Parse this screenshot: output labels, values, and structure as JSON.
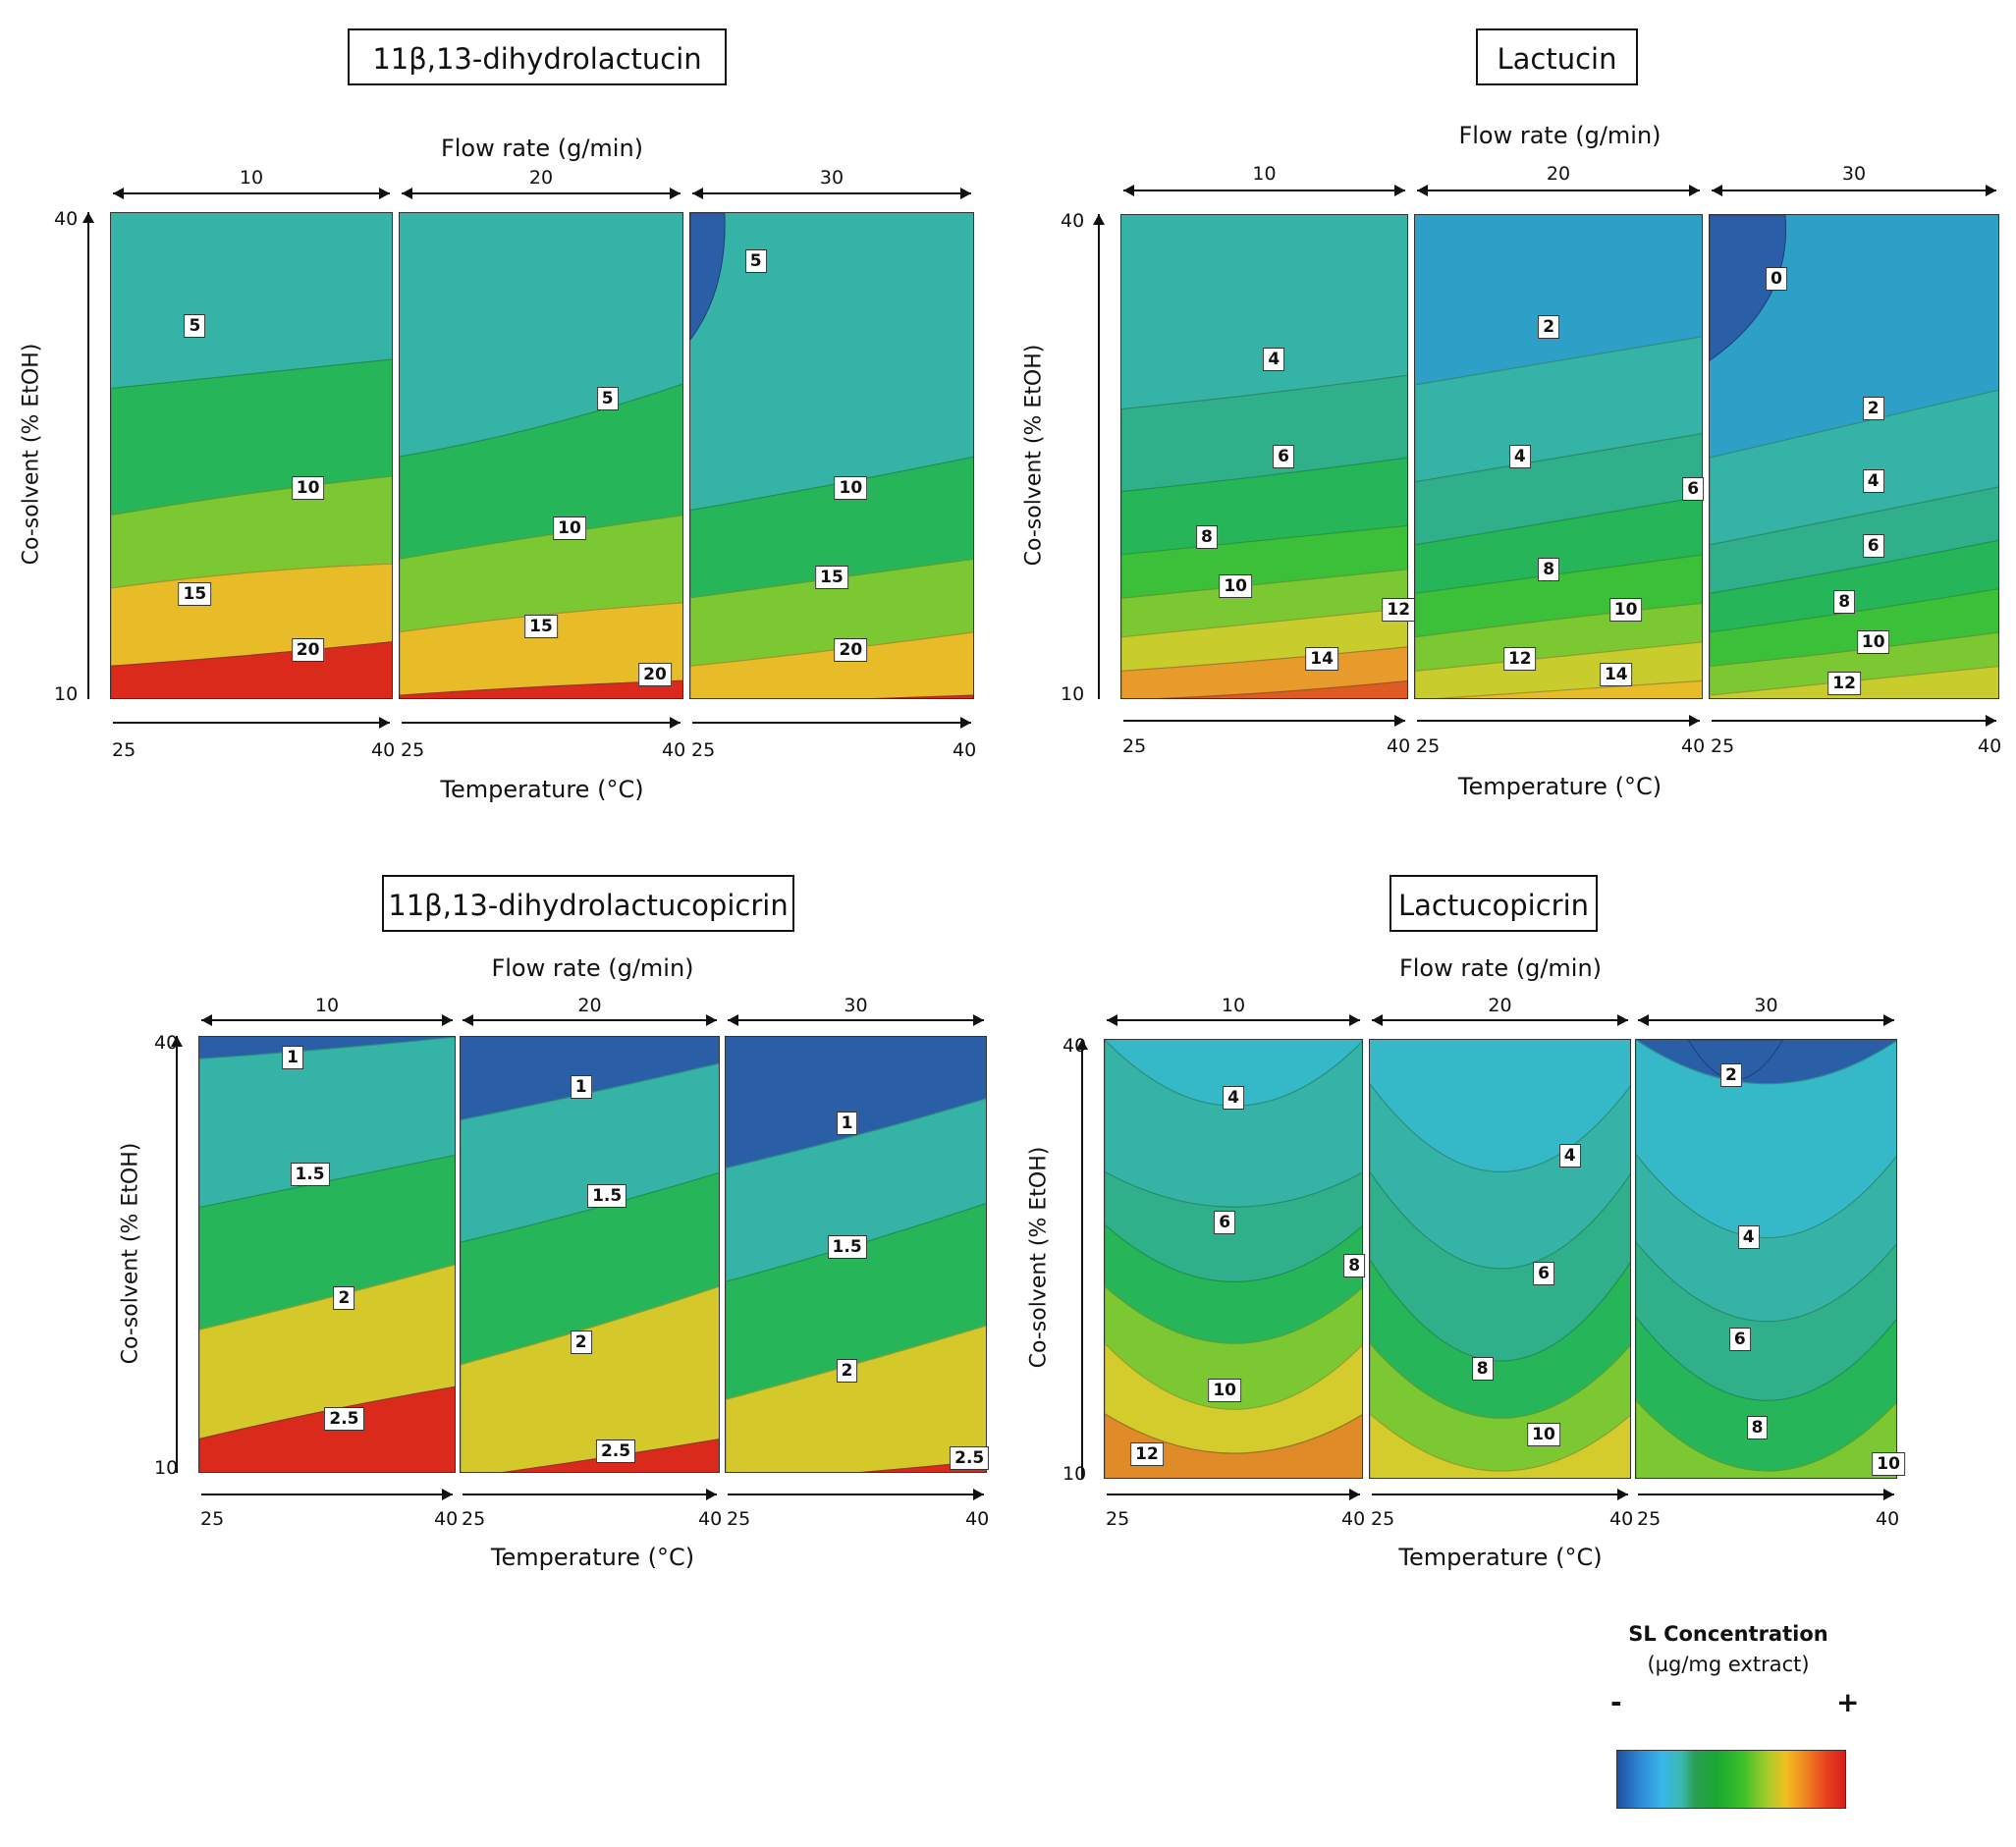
{
  "figure": {
    "common": {
      "flow_title": "Flow rate (g/min)",
      "temp_title": "Temperature (°C)",
      "y_title": "Co-solvent (% EtOH)",
      "flow_rates": [
        "10",
        "20",
        "30"
      ],
      "temp_min": "25",
      "temp_max": "40",
      "y_min": "10",
      "y_max": "40"
    },
    "legend": {
      "title": "SL Concentration",
      "subtitle": "(µg/mg extract)",
      "minus": "-",
      "plus": "+"
    }
  },
  "chart_data": [
    {
      "type": "heatmap",
      "title": "11β,13-dihydrolactucin",
      "xlabel": "Temperature (°C)",
      "ylabel": "Co-solvent (% EtOH)",
      "facet_label": "Flow rate (g/min)",
      "x_range": [
        25,
        40
      ],
      "y_range": [
        10,
        40
      ],
      "facets": [
        {
          "flow": "10",
          "contour_labels": [
            {
              "text": "5",
              "temp": 29.5,
              "etoh": 33
            },
            {
              "text": "10",
              "temp": 35.5,
              "etoh": 23
            },
            {
              "text": "15",
              "temp": 29.5,
              "etoh": 16.5
            },
            {
              "text": "20",
              "temp": 35.5,
              "etoh": 13
            }
          ]
        },
        {
          "flow": "20",
          "contour_labels": [
            {
              "text": "5",
              "temp": 36,
              "etoh": 28.5
            },
            {
              "text": "10",
              "temp": 34,
              "etoh": 20.5
            },
            {
              "text": "15",
              "temp": 32.5,
              "etoh": 14.5
            },
            {
              "text": "20",
              "temp": 38.5,
              "etoh": 11.5
            }
          ]
        },
        {
          "flow": "30",
          "contour_labels": [
            {
              "text": "5",
              "temp": 28.5,
              "etoh": 37
            },
            {
              "text": "10",
              "temp": 33.5,
              "etoh": 23
            },
            {
              "text": "15",
              "temp": 32.5,
              "etoh": 17.5
            },
            {
              "text": "20",
              "temp": 33.5,
              "etoh": 13
            }
          ]
        }
      ]
    },
    {
      "type": "heatmap",
      "title": "Lactucin",
      "xlabel": "Temperature (°C)",
      "ylabel": "Co-solvent (% EtOH)",
      "facet_label": "Flow rate (g/min)",
      "x_range": [
        25,
        40
      ],
      "y_range": [
        10,
        40
      ],
      "facets": [
        {
          "flow": "10",
          "contour_labels": [
            {
              "text": "4",
              "temp": 33,
              "etoh": 31
            },
            {
              "text": "6",
              "temp": 33.5,
              "etoh": 25
            },
            {
              "text": "8",
              "temp": 29.5,
              "etoh": 20
            },
            {
              "text": "10",
              "temp": 31,
              "etoh": 17
            },
            {
              "text": "12",
              "temp": 39.5,
              "etoh": 15.5
            },
            {
              "text": "14",
              "temp": 35.5,
              "etoh": 12.5
            }
          ]
        },
        {
          "flow": "20",
          "contour_labels": [
            {
              "text": "2",
              "temp": 32,
              "etoh": 33
            },
            {
              "text": "4",
              "temp": 30.5,
              "etoh": 25
            },
            {
              "text": "6",
              "temp": 39.5,
              "etoh": 23
            },
            {
              "text": "8",
              "temp": 32,
              "etoh": 18
            },
            {
              "text": "10",
              "temp": 36,
              "etoh": 15.5
            },
            {
              "text": "12",
              "temp": 30.5,
              "etoh": 12.5
            },
            {
              "text": "14",
              "temp": 35.5,
              "etoh": 11.5
            }
          ]
        },
        {
          "flow": "30",
          "contour_labels": [
            {
              "text": "0",
              "temp": 28.5,
              "etoh": 36
            },
            {
              "text": "2",
              "temp": 33.5,
              "etoh": 28
            },
            {
              "text": "4",
              "temp": 33.5,
              "etoh": 23.5
            },
            {
              "text": "6",
              "temp": 33.5,
              "etoh": 19.5
            },
            {
              "text": "8",
              "temp": 32,
              "etoh": 16
            },
            {
              "text": "10",
              "temp": 33.5,
              "etoh": 13.5
            },
            {
              "text": "12",
              "temp": 32,
              "etoh": 11
            }
          ]
        }
      ]
    },
    {
      "type": "heatmap",
      "title": "11β,13-dihydrolactucopicrin",
      "xlabel": "Temperature (°C)",
      "ylabel": "Co-solvent (% EtOH)",
      "facet_label": "Flow rate (g/min)",
      "x_range": [
        25,
        40
      ],
      "y_range": [
        10,
        40
      ],
      "facets": [
        {
          "flow": "10",
          "contour_labels": [
            {
              "text": "1",
              "temp": 30.5,
              "etoh": 38.5
            },
            {
              "text": "1.5",
              "temp": 31.5,
              "etoh": 30.5
            },
            {
              "text": "2",
              "temp": 33.5,
              "etoh": 22
            },
            {
              "text": "2.5",
              "temp": 33.5,
              "etoh": 13.7
            }
          ]
        },
        {
          "flow": "20",
          "contour_labels": [
            {
              "text": "1",
              "temp": 32,
              "etoh": 36.5
            },
            {
              "text": "1.5",
              "temp": 33.5,
              "etoh": 29
            },
            {
              "text": "2",
              "temp": 32,
              "etoh": 19
            }
          ]
        },
        {
          "flow": "20",
          "contour_labels": [
            {
              "text": "2.5",
              "temp": 34,
              "etoh": 11.5
            }
          ]
        },
        {
          "flow": "30",
          "contour_labels": [
            {
              "text": "1",
              "temp": 32,
              "etoh": 34
            },
            {
              "text": "1.5",
              "temp": 32,
              "etoh": 25.5
            },
            {
              "text": "2",
              "temp": 32,
              "etoh": 17
            },
            {
              "text": "2.5",
              "temp": 39,
              "etoh": 11
            }
          ]
        }
      ]
    },
    {
      "type": "heatmap",
      "title": "Lactucopicrin",
      "xlabel": "Temperature (°C)",
      "ylabel": "Co-solvent (% EtOH)",
      "facet_label": "Flow rate (g/min)",
      "x_range": [
        25,
        40
      ],
      "y_range": [
        10,
        40
      ],
      "facets": [
        {
          "flow": "10",
          "contour_labels": [
            {
              "text": "4",
              "temp": 32.5,
              "etoh": 36
            },
            {
              "text": "6",
              "temp": 32,
              "etoh": 27.5
            },
            {
              "text": "8",
              "temp": 39.5,
              "etoh": 24.5
            },
            {
              "text": "10",
              "temp": 32,
              "etoh": 16
            },
            {
              "text": "12",
              "temp": 27.5,
              "etoh": 11.7
            }
          ]
        },
        {
          "flow": "20",
          "contour_labels": [
            {
              "text": "4",
              "temp": 36.5,
              "etoh": 32
            },
            {
              "text": "6",
              "temp": 35,
              "etoh": 24
            },
            {
              "text": "8",
              "temp": 31.5,
              "etoh": 17.5
            },
            {
              "text": "10",
              "temp": 35,
              "etoh": 13
            }
          ]
        },
        {
          "flow": "30",
          "contour_labels": [
            {
              "text": "2",
              "temp": 30.5,
              "etoh": 37.5
            },
            {
              "text": "4",
              "temp": 31.5,
              "etoh": 26.5
            },
            {
              "text": "6",
              "temp": 31,
              "etoh": 19.5
            },
            {
              "text": "8",
              "temp": 32,
              "etoh": 13.5
            },
            {
              "text": "10",
              "temp": 39.5,
              "etoh": 11
            }
          ]
        }
      ]
    }
  ]
}
